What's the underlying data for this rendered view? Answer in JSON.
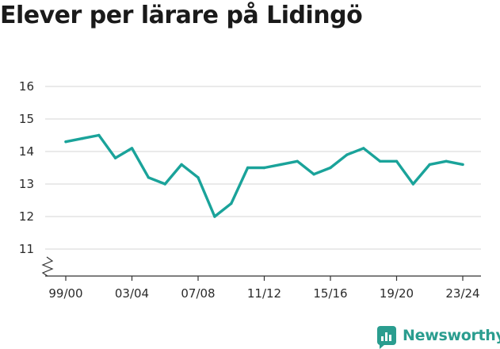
{
  "title": "Elever per lärare på Lidingö",
  "brand": {
    "name": "Newsworthy",
    "color": "#2a9d8f"
  },
  "chart_data": {
    "type": "line",
    "title": "Elever per lärare på Lidingö",
    "xlabel": "",
    "ylabel": "",
    "ylim": [
      10.3,
      16.5
    ],
    "axis_break": true,
    "grid": true,
    "y_ticks": [
      11,
      12,
      13,
      14,
      15,
      16
    ],
    "x_tick_labels": [
      "99/00",
      "03/04",
      "07/08",
      "11/12",
      "15/16",
      "19/20",
      "23/24"
    ],
    "line_color": "#1aa39a",
    "series": [
      {
        "x": [
          "99/00",
          "00/01",
          "01/02",
          "02/03",
          "03/04",
          "04/05",
          "05/06",
          "06/07",
          "07/08",
          "08/09",
          "09/10",
          "10/11",
          "11/12",
          "12/13",
          "13/14",
          "14/15",
          "15/16",
          "16/17",
          "17/18",
          "18/19",
          "19/20",
          "20/21",
          "21/22",
          "22/23",
          "23/24"
        ],
        "values": [
          14.3,
          14.4,
          14.5,
          13.8,
          14.1,
          13.2,
          13.0,
          13.6,
          13.2,
          12.0,
          12.4,
          13.5,
          13.5,
          13.6,
          13.7,
          13.3,
          13.5,
          13.9,
          14.1,
          13.7,
          13.7,
          13.0,
          13.6,
          13.7,
          13.6
        ]
      }
    ]
  }
}
